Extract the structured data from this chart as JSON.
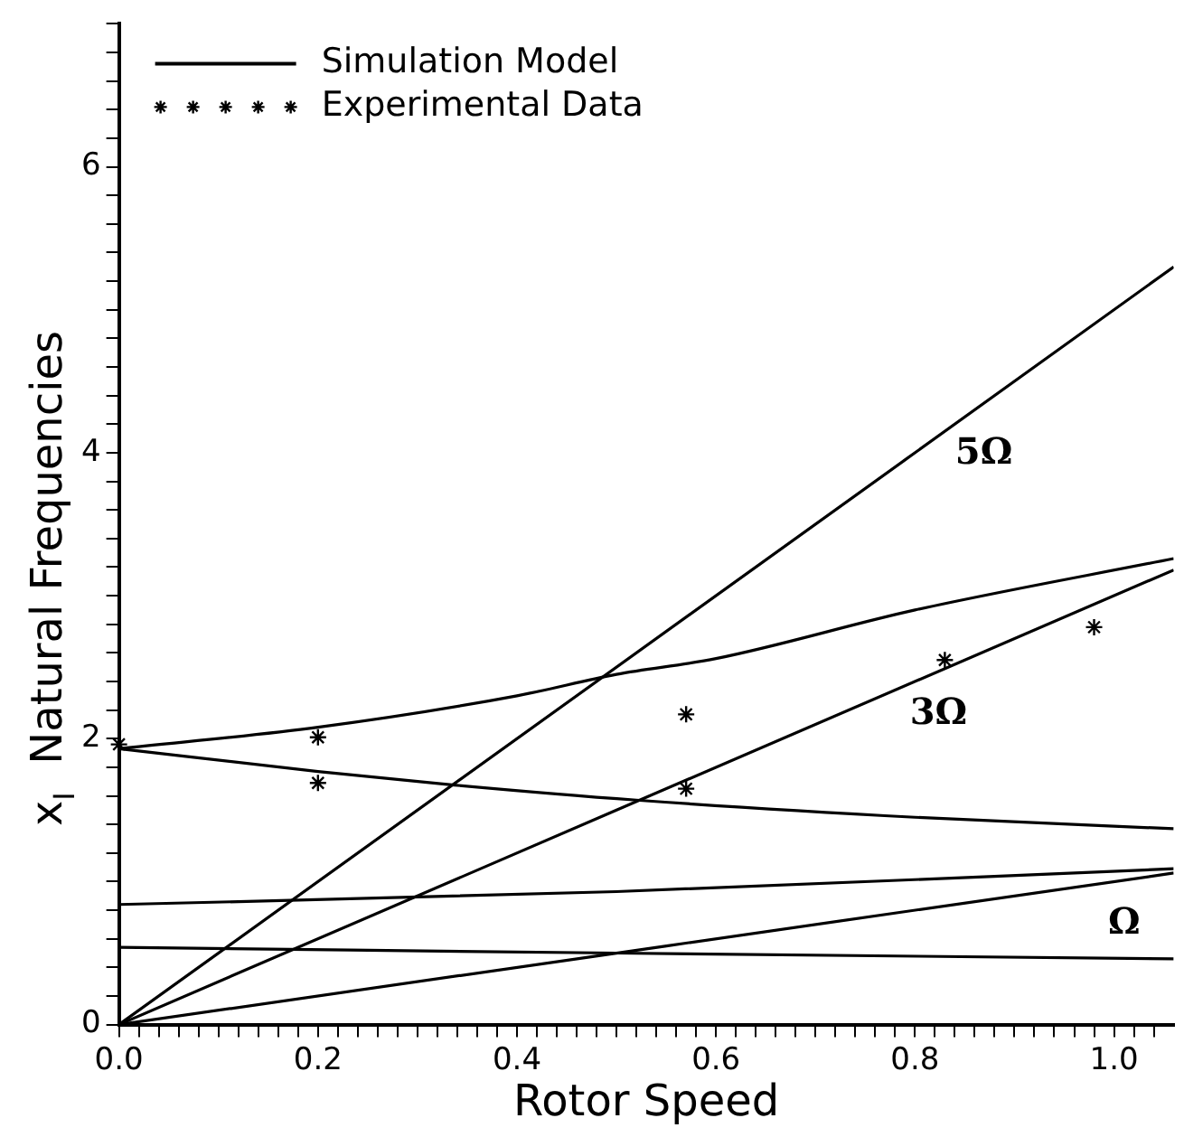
{
  "chart_data": {
    "type": "line",
    "xlabel": "Rotor Speed",
    "ylabel": "x$_{I}$  Natural Frequencies",
    "xlim": [
      0,
      1.06
    ],
    "ylim": [
      0,
      7
    ],
    "xticks": [
      {
        "value": 0,
        "label": "0.0"
      },
      {
        "value": 0.02,
        "label": null
      },
      {
        "value": 0.04,
        "label": null
      },
      {
        "value": 0.06,
        "label": null
      },
      {
        "value": 0.08,
        "label": null
      },
      {
        "value": 0.1,
        "label": null
      },
      {
        "value": 0.12,
        "label": null
      },
      {
        "value": 0.14,
        "label": null
      },
      {
        "value": 0.16,
        "label": null
      },
      {
        "value": 0.18,
        "label": null
      },
      0.2,
      {
        "value": 0.22,
        "label": null
      },
      {
        "value": 0.24,
        "label": null
      },
      {
        "value": 0.26,
        "label": null
      },
      {
        "value": 0.28,
        "label": null
      },
      {
        "value": 0.3,
        "label": null
      },
      {
        "value": 0.32,
        "label": null
      },
      {
        "value": 0.34,
        "label": null
      },
      {
        "value": 0.36,
        "label": null
      },
      {
        "value": 0.38,
        "label": null
      },
      0.4,
      {
        "value": 0.42,
        "label": null
      },
      {
        "value": 0.44,
        "label": null
      },
      {
        "value": 0.46,
        "label": null
      },
      {
        "value": 0.48,
        "label": null
      },
      {
        "value": 0.5,
        "label": null
      },
      {
        "value": 0.52,
        "label": null
      },
      {
        "value": 0.54,
        "label": null
      },
      {
        "value": 0.56,
        "label": null
      },
      {
        "value": 0.58,
        "label": null
      },
      0.6,
      {
        "value": 0.62,
        "label": null
      },
      {
        "value": 0.64,
        "label": null
      },
      {
        "value": 0.66,
        "label": null
      },
      {
        "value": 0.68,
        "label": null
      },
      {
        "value": 0.7,
        "label": null
      },
      {
        "value": 0.72,
        "label": null
      },
      {
        "value": 0.74,
        "label": null
      },
      {
        "value": 0.76,
        "label": null
      },
      {
        "value": 0.78,
        "label": null
      },
      0.8,
      {
        "value": 0.82,
        "label": null
      },
      {
        "value": 0.84,
        "label": null
      },
      {
        "value": 0.86,
        "label": null
      },
      {
        "value": 0.88,
        "label": null
      },
      {
        "value": 0.9,
        "label": null
      },
      {
        "value": 0.92,
        "label": null
      },
      {
        "value": 0.94,
        "label": null
      },
      {
        "value": 0.96,
        "label": null
      },
      {
        "value": 0.98,
        "label": null
      },
      {
        "value": 1,
        "label": "1.0"
      },
      {
        "value": 1.02,
        "label": null
      },
      {
        "value": 1.04,
        "label": null
      }
    ],
    "yticks": [
      0,
      {
        "value": 0.2,
        "label": null
      },
      {
        "value": 0.4,
        "label": null
      },
      {
        "value": 0.6,
        "label": null
      },
      {
        "value": 0.8,
        "label": null
      },
      {
        "value": 1,
        "label": null
      },
      {
        "value": 1.2,
        "label": null
      },
      {
        "value": 1.4,
        "label": null
      },
      {
        "value": 1.6,
        "label": null
      },
      {
        "value": 1.8,
        "label": null
      },
      2,
      {
        "value": 2.2,
        "label": null
      },
      {
        "value": 2.4,
        "label": null
      },
      {
        "value": 2.6,
        "label": null
      },
      {
        "value": 2.8,
        "label": null
      },
      {
        "value": 3,
        "label": null
      },
      {
        "value": 3.2,
        "label": null
      },
      {
        "value": 3.4,
        "label": null
      },
      {
        "value": 3.6,
        "label": null
      },
      {
        "value": 3.8,
        "label": null
      },
      4,
      {
        "value": 4.2,
        "label": null
      },
      {
        "value": 4.4,
        "label": null
      },
      {
        "value": 4.6,
        "label": null
      },
      {
        "value": 4.8,
        "label": null
      },
      {
        "value": 5,
        "label": null
      },
      {
        "value": 5.2,
        "label": null
      },
      {
        "value": 5.4,
        "label": null
      },
      {
        "value": 5.6,
        "label": null
      },
      {
        "value": 5.8,
        "label": null
      },
      6,
      {
        "value": 6.2,
        "label": null
      },
      {
        "value": 6.4,
        "label": null
      },
      {
        "value": 6.6,
        "label": null
      },
      {
        "value": 6.8,
        "label": null
      },
      {
        "value": 7,
        "label": null
      }
    ],
    "legend": "top left",
    "line_style": "solid",
    "marker": "none",
    "series": [
      {
        "name": "Simulation Model",
        "color": "#000000",
        "x": [
          0,
          0.2,
          0.4,
          0.5,
          0.6,
          0.8,
          1.06
        ],
        "values": [
          1.93,
          2.08,
          2.3,
          2.45,
          2.56,
          2.9,
          3.26
        ]
      },
      {
        "color": "#000000",
        "x": [
          0,
          0.2,
          0.33,
          0.52,
          0.8,
          1.06
        ],
        "values": [
          1.93,
          1.77,
          1.68,
          1.57,
          1.45,
          1.37
        ]
      },
      {
        "color": "#000000",
        "x": [
          0,
          0.5,
          1.06
        ],
        "values": [
          0.84,
          0.93,
          1.09
        ]
      },
      {
        "color": "#000000",
        "x": [
          0,
          0.5,
          1.06
        ],
        "values": [
          0.54,
          0.5,
          0.46
        ]
      },
      {
        "color": "#000000",
        "x": [
          0,
          1.06
        ],
        "values": [
          0,
          1.06
        ]
      },
      {
        "color": "#000000",
        "x": [
          0,
          1.06
        ],
        "values": [
          0,
          3.18
        ]
      },
      {
        "color": "#000000",
        "x": [
          0,
          1.06
        ],
        "values": [
          0,
          5.3
        ]
      },
      {
        "name": "Experimental Data",
        "type": "scatter",
        "marker": "cross",
        "color": "#000000",
        "x": [
          0,
          0.2,
          0.2,
          0.57,
          0.57,
          0.83,
          0.98
        ],
        "values": [
          1.96,
          2.01,
          1.69,
          2.17,
          1.65,
          2.55,
          2.78
        ]
      }
    ],
    "annotations": [
      "5Ω",
      "3Ω",
      "Ω"
    ]
  }
}
